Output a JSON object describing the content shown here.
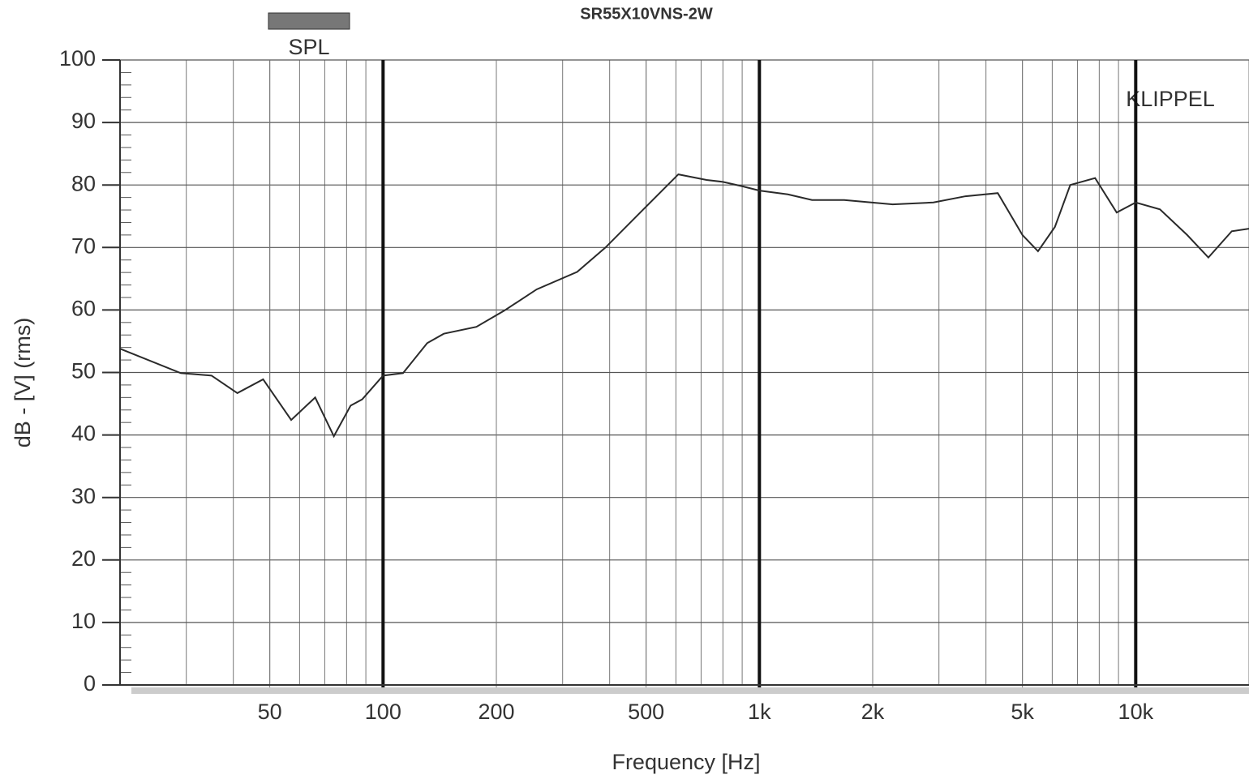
{
  "chart_data": {
    "type": "line",
    "title": "SR55X10VNS-2W",
    "annotation": "KLIPPEL",
    "x_label": "Frequency [Hz]",
    "y_label": "dB - [V]  (rms)",
    "x_scale": "log",
    "xlim": [
      20,
      20000
    ],
    "ylim": [
      0,
      100
    ],
    "grid": true,
    "xticks": [
      50,
      100,
      200,
      500,
      {
        "value": 1000,
        "label": "1k"
      },
      {
        "value": 2000,
        "label": "2k"
      },
      {
        "value": 5000,
        "label": "5k"
      },
      {
        "value": 10000,
        "label": "10k"
      }
    ],
    "yticks": [
      0,
      10,
      20,
      30,
      40,
      50,
      60,
      70,
      80,
      90,
      100
    ],
    "legend": "top-left",
    "x": [
      20,
      29,
      35,
      41,
      48,
      57,
      66,
      74,
      82,
      88,
      100,
      113,
      131,
      145,
      177,
      210,
      256,
      328,
      390,
      488,
      609,
      724,
      800,
      900,
      1000,
      1190,
      1380,
      1680,
      2260,
      2900,
      3530,
      4300,
      5000,
      5500,
      6100,
      6700,
      7800,
      8900,
      10000,
      11600,
      13700,
      15600,
      18000,
      20000
    ],
    "series": [
      {
        "name": "SPL",
        "color": "#2a2a2a",
        "values": [
          53.8,
          49.9,
          49.5,
          46.7,
          48.9,
          42.4,
          46.0,
          39.8,
          44.7,
          45.7,
          49.5,
          49.9,
          54.7,
          56.2,
          57.3,
          59.9,
          63.3,
          66.1,
          70.0,
          75.9,
          81.7,
          80.8,
          80.5,
          79.8,
          79.1,
          78.5,
          77.6,
          77.6,
          76.9,
          77.2,
          78.2,
          78.7,
          72.0,
          69.4,
          73.3,
          80.0,
          81.1,
          75.6,
          77.2,
          76.1,
          72.0,
          68.4,
          72.6,
          73.0
        ]
      }
    ]
  }
}
